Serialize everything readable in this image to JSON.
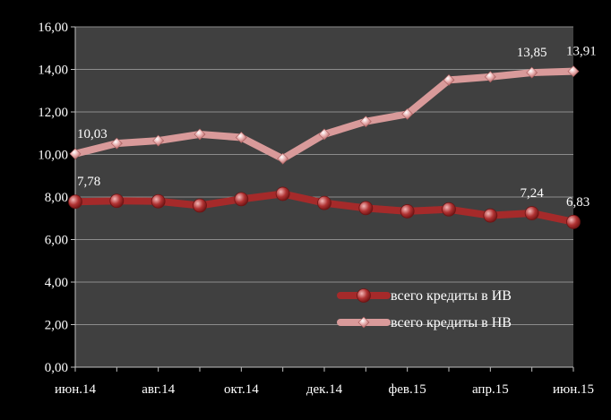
{
  "chart_data": {
    "type": "line",
    "title": "",
    "xlabel": "",
    "ylabel": "",
    "ylim": [
      0,
      16
    ],
    "y_ticks": [
      "0,00",
      "2,00",
      "4,00",
      "6,00",
      "8,00",
      "10,00",
      "12,00",
      "14,00",
      "16,00"
    ],
    "categories": [
      "июн.14",
      "июл.14",
      "авг.14",
      "сен.14",
      "окт.14",
      "ноя.14",
      "дек.14",
      "янв.15",
      "фев.15",
      "мар.15",
      "апр.15",
      "май.15",
      "июн.15"
    ],
    "x_tick_labels": [
      "июн.14",
      "авг.14",
      "окт.14",
      "дек.14",
      "фев.15",
      "апр.15",
      "июн.15"
    ],
    "grid": true,
    "legend_position": "bottom-right",
    "plot_background": "#404040",
    "series": [
      {
        "name": "всего кредиты в ИВ",
        "color": "#a52a2a",
        "marker": "circle",
        "values": [
          7.78,
          7.82,
          7.8,
          7.6,
          7.9,
          8.15,
          7.72,
          7.48,
          7.33,
          7.42,
          7.13,
          7.24,
          6.83
        ],
        "labels": [
          {
            "index": 0,
            "text": "7,78"
          },
          {
            "index": 11,
            "text": "7,24"
          },
          {
            "index": 12,
            "text": "6,83"
          }
        ]
      },
      {
        "name": "всего кредиты в НВ",
        "color": "#d99a9a",
        "marker": "diamond",
        "values": [
          10.03,
          10.52,
          10.65,
          10.95,
          10.8,
          9.8,
          10.95,
          11.55,
          11.9,
          13.5,
          13.65,
          13.85,
          13.91
        ],
        "labels": [
          {
            "index": 0,
            "text": "10,03"
          },
          {
            "index": 11,
            "text": "13,85"
          },
          {
            "index": 12,
            "text": "13,91"
          }
        ]
      }
    ]
  }
}
